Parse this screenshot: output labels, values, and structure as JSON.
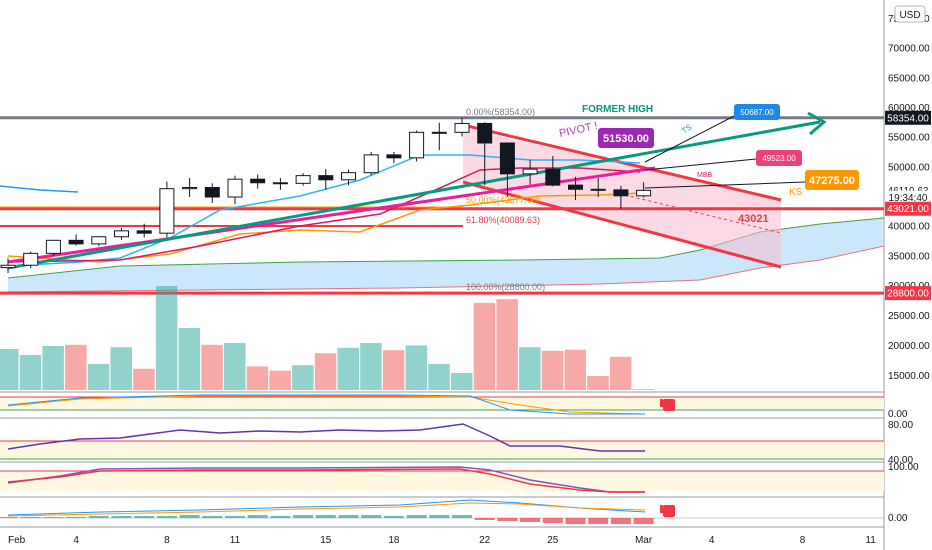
{
  "currency_badge": "USD",
  "chart_data": {
    "type": "candlestick",
    "x_ticks": [
      {
        "label": "Feb",
        "day": 0
      },
      {
        "label": "4",
        "day": 3
      },
      {
        "label": "8",
        "day": 7
      },
      {
        "label": "11",
        "day": 10
      },
      {
        "label": "15",
        "day": 14
      },
      {
        "label": "18",
        "day": 17
      },
      {
        "label": "22",
        "day": 21
      },
      {
        "label": "25",
        "day": 24
      },
      {
        "label": "Mar",
        "day": 28
      },
      {
        "label": "4",
        "day": 31
      },
      {
        "label": "8",
        "day": 35
      },
      {
        "label": "11",
        "day": 38
      }
    ],
    "price_axis": {
      "ticks": [
        "75000.00",
        "70000.00",
        "65000.00",
        "60000.00",
        "55000.00",
        "50000.00",
        "45000.00",
        "40000.00",
        "35000.00",
        "30000.00",
        "25000.00",
        "20000.00",
        "15000.00"
      ],
      "min": 12000,
      "max": 78000
    },
    "price_labels": [
      {
        "text": "58354.00",
        "value": 58354,
        "bg": "#131722",
        "fg": "#ffffff"
      },
      {
        "text": "46119.63",
        "value": 46119.63,
        "bg": "#ffffff",
        "fg": "#131722"
      },
      {
        "text": "19:34:40",
        "value": 44900,
        "bg": "#ffffff",
        "fg": "#131722"
      },
      {
        "text": "43021.00",
        "value": 43021,
        "bg": "#f23645",
        "fg": "#ffffff"
      },
      {
        "text": "28800.00",
        "value": 28800,
        "bg": "#f23645",
        "fg": "#ffffff"
      }
    ],
    "candles": [
      {
        "day": 0,
        "o": 33100,
        "h": 34700,
        "l": 32200,
        "c": 33500
      },
      {
        "day": 1,
        "o": 33500,
        "h": 35800,
        "l": 33000,
        "c": 35500
      },
      {
        "day": 2,
        "o": 35500,
        "h": 37800,
        "l": 35100,
        "c": 37700
      },
      {
        "day": 3,
        "o": 37700,
        "h": 38700,
        "l": 36800,
        "c": 37100
      },
      {
        "day": 4,
        "o": 37100,
        "h": 38400,
        "l": 36700,
        "c": 38300
      },
      {
        "day": 5,
        "o": 38300,
        "h": 39800,
        "l": 37800,
        "c": 39300
      },
      {
        "day": 6,
        "o": 39300,
        "h": 40500,
        "l": 38200,
        "c": 38900
      },
      {
        "day": 7,
        "o": 38900,
        "h": 47600,
        "l": 38200,
        "c": 46400
      },
      {
        "day": 8,
        "o": 46400,
        "h": 48200,
        "l": 45000,
        "c": 46600
      },
      {
        "day": 9,
        "o": 46600,
        "h": 47300,
        "l": 44000,
        "c": 45000
      },
      {
        "day": 10,
        "o": 45000,
        "h": 48600,
        "l": 43800,
        "c": 48000
      },
      {
        "day": 11,
        "o": 48000,
        "h": 48800,
        "l": 46400,
        "c": 47400
      },
      {
        "day": 12,
        "o": 47400,
        "h": 48200,
        "l": 46200,
        "c": 47300
      },
      {
        "day": 13,
        "o": 47300,
        "h": 49000,
        "l": 46900,
        "c": 48600
      },
      {
        "day": 14,
        "o": 48600,
        "h": 49700,
        "l": 46200,
        "c": 47900
      },
      {
        "day": 15,
        "o": 47900,
        "h": 49600,
        "l": 47000,
        "c": 49100
      },
      {
        "day": 16,
        "o": 49100,
        "h": 52600,
        "l": 48700,
        "c": 52100
      },
      {
        "day": 17,
        "o": 52100,
        "h": 52600,
        "l": 50700,
        "c": 51600
      },
      {
        "day": 18,
        "o": 51600,
        "h": 56200,
        "l": 51000,
        "c": 55900
      },
      {
        "day": 19,
        "o": 55900,
        "h": 57500,
        "l": 52900,
        "c": 55900
      },
      {
        "day": 20,
        "o": 55900,
        "h": 58354,
        "l": 55200,
        "c": 57400
      },
      {
        "day": 21,
        "o": 57400,
        "h": 57600,
        "l": 47000,
        "c": 54100
      },
      {
        "day": 22,
        "o": 54100,
        "h": 54100,
        "l": 45000,
        "c": 48900
      },
      {
        "day": 23,
        "o": 48900,
        "h": 51300,
        "l": 47100,
        "c": 49700
      },
      {
        "day": 24,
        "o": 49700,
        "h": 51900,
        "l": 46800,
        "c": 47000
      },
      {
        "day": 25,
        "o": 47000,
        "h": 48400,
        "l": 44500,
        "c": 46300
      },
      {
        "day": 26,
        "o": 46300,
        "h": 48200,
        "l": 45000,
        "c": 46200
      },
      {
        "day": 27,
        "o": 46200,
        "h": 46900,
        "l": 43000,
        "c": 45200
      },
      {
        "day": 28,
        "o": 45200,
        "h": 47500,
        "l": 44900,
        "c": 46119.63
      }
    ],
    "volume": {
      "axis_ticks": [
        "25000.00",
        "20000.00",
        "15000.00"
      ],
      "min": 12000,
      "max": 30000,
      "values": [
        19500,
        18500,
        20000,
        20200,
        17000,
        19800,
        16200,
        30000,
        23000,
        20200,
        20500,
        16600,
        15900,
        16800,
        18800,
        19700,
        20500,
        19300,
        20100,
        17000,
        15500,
        27200,
        27800,
        19800,
        19200,
        19400,
        15000,
        18200,
        12800
      ]
    },
    "horizontal_levels": [
      {
        "value": 58354,
        "color": "#787b86"
      },
      {
        "value": 43021,
        "color": "#f23645"
      },
      {
        "value": 28800,
        "color": "#f23645"
      }
    ],
    "fib_levels": [
      {
        "text": "0.00%(58354.00)",
        "value": 58354
      },
      {
        "text": "50.00%(43577.00)",
        "value": 43577
      },
      {
        "text": "61.80%(40089.63)",
        "value": 40089.63
      },
      {
        "text": "100.00%(28800.00)",
        "value": 28800
      }
    ],
    "annotations": {
      "former_high": "FORMER HIGH",
      "pivot": "PIVOT !",
      "pivot_value": "51530.00",
      "ts_label": "TS",
      "ts_value": "50687.00",
      "mbb_label": "MBB",
      "mbb_value": "49523.00",
      "ks_label": "KS",
      "ks_value": "47275.00",
      "target_value": "43021"
    },
    "indicator_1_ticks": [
      "0.00"
    ],
    "indicator_2_ticks": [
      "80.00",
      "40.00"
    ],
    "indicator_3_ticks": [
      "100.00"
    ],
    "indicator_4_ticks": [
      "0.00"
    ],
    "colors": {
      "up": "#26a69a",
      "down": "#ef5350",
      "teal_trend": "#089981",
      "magenta_trend": "#e91e9c",
      "cloud": "#bbdefb",
      "channel": "#f23645"
    }
  }
}
